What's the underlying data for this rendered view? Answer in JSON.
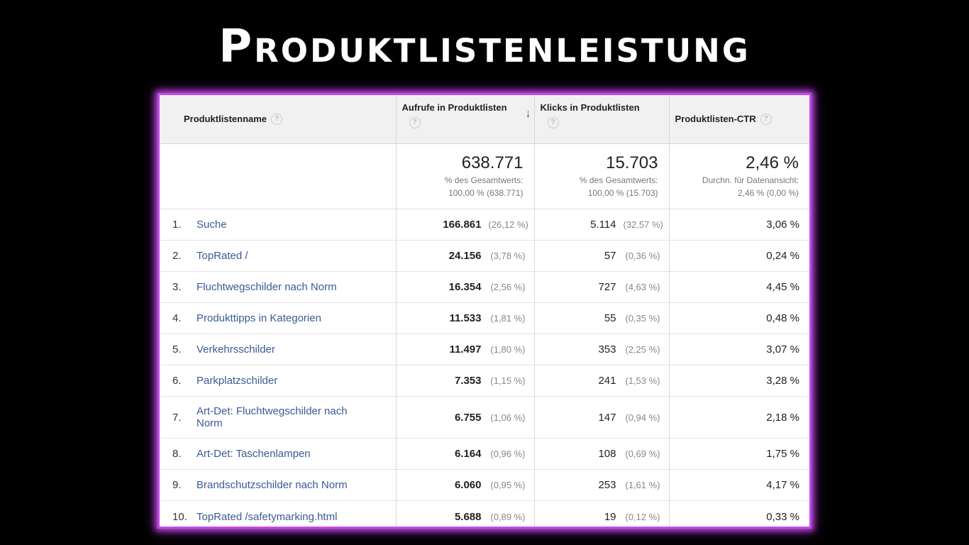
{
  "title": "Produktlistenleistung",
  "table": {
    "headers": {
      "name": "Produktlistenname",
      "views": "Aufrufe in Produktlisten",
      "clicks": "Klicks in Produktlisten",
      "ctr": "Produktlisten-CTR",
      "help": "?"
    },
    "totals": {
      "views_big": "638.771",
      "views_l1": "% des Gesamtwerts:",
      "views_l2": "100,00 % (638.771)",
      "clicks_big": "15.703",
      "clicks_l1": "% des Gesamtwerts:",
      "clicks_l2": "100,00 % (15.703)",
      "ctr_big": "2,46 %",
      "ctr_l1": "Durchn. für Datenansicht:",
      "ctr_l2": "2,46 % (0,00 %)"
    },
    "rows": [
      {
        "idx": "1.",
        "name": "Suche",
        "views": "166.861",
        "views_pct": "(26,12 %)",
        "clicks": "5.114",
        "clicks_pct": "(32,57 %)",
        "ctr": "3,06 %"
      },
      {
        "idx": "2.",
        "name": "TopRated /",
        "views": "24.156",
        "views_pct": "(3,78 %)",
        "clicks": "57",
        "clicks_pct": "(0,36 %)",
        "ctr": "0,24 %"
      },
      {
        "idx": "3.",
        "name": "Fluchtwegschilder nach Norm",
        "views": "16.354",
        "views_pct": "(2,56 %)",
        "clicks": "727",
        "clicks_pct": "(4,63 %)",
        "ctr": "4,45 %"
      },
      {
        "idx": "4.",
        "name": "Produkttipps in Kategorien",
        "views": "11.533",
        "views_pct": "(1,81 %)",
        "clicks": "55",
        "clicks_pct": "(0,35 %)",
        "ctr": "0,48 %"
      },
      {
        "idx": "5.",
        "name": "Verkehrsschilder",
        "views": "11.497",
        "views_pct": "(1,80 %)",
        "clicks": "353",
        "clicks_pct": "(2,25 %)",
        "ctr": "3,07 %"
      },
      {
        "idx": "6.",
        "name": "Parkplatzschilder",
        "views": "7.353",
        "views_pct": "(1,15 %)",
        "clicks": "241",
        "clicks_pct": "(1,53 %)",
        "ctr": "3,28 %"
      },
      {
        "idx": "7.",
        "name": "Art-Det: Fluchtwegschilder nach Norm",
        "views": "6.755",
        "views_pct": "(1,06 %)",
        "clicks": "147",
        "clicks_pct": "(0,94 %)",
        "ctr": "2,18 %"
      },
      {
        "idx": "8.",
        "name": "Art-Det: Taschenlampen",
        "views": "6.164",
        "views_pct": "(0,96 %)",
        "clicks": "108",
        "clicks_pct": "(0,69 %)",
        "ctr": "1,75 %"
      },
      {
        "idx": "9.",
        "name": "Brandschutzschilder nach Norm",
        "views": "6.060",
        "views_pct": "(0,95 %)",
        "clicks": "253",
        "clicks_pct": "(1,61 %)",
        "ctr": "4,17 %"
      },
      {
        "idx": "10.",
        "name": "TopRated /safetymarking.html",
        "views": "5.688",
        "views_pct": "(0,89 %)",
        "clicks": "19",
        "clicks_pct": "(0,12 %)",
        "ctr": "0,33 %"
      }
    ]
  },
  "colors": {
    "frame_glow": "#c34be6",
    "link": "#3a5a95",
    "background": "#000000"
  },
  "icons": {
    "help": "help-icon",
    "sort": "sort-descending-icon"
  }
}
